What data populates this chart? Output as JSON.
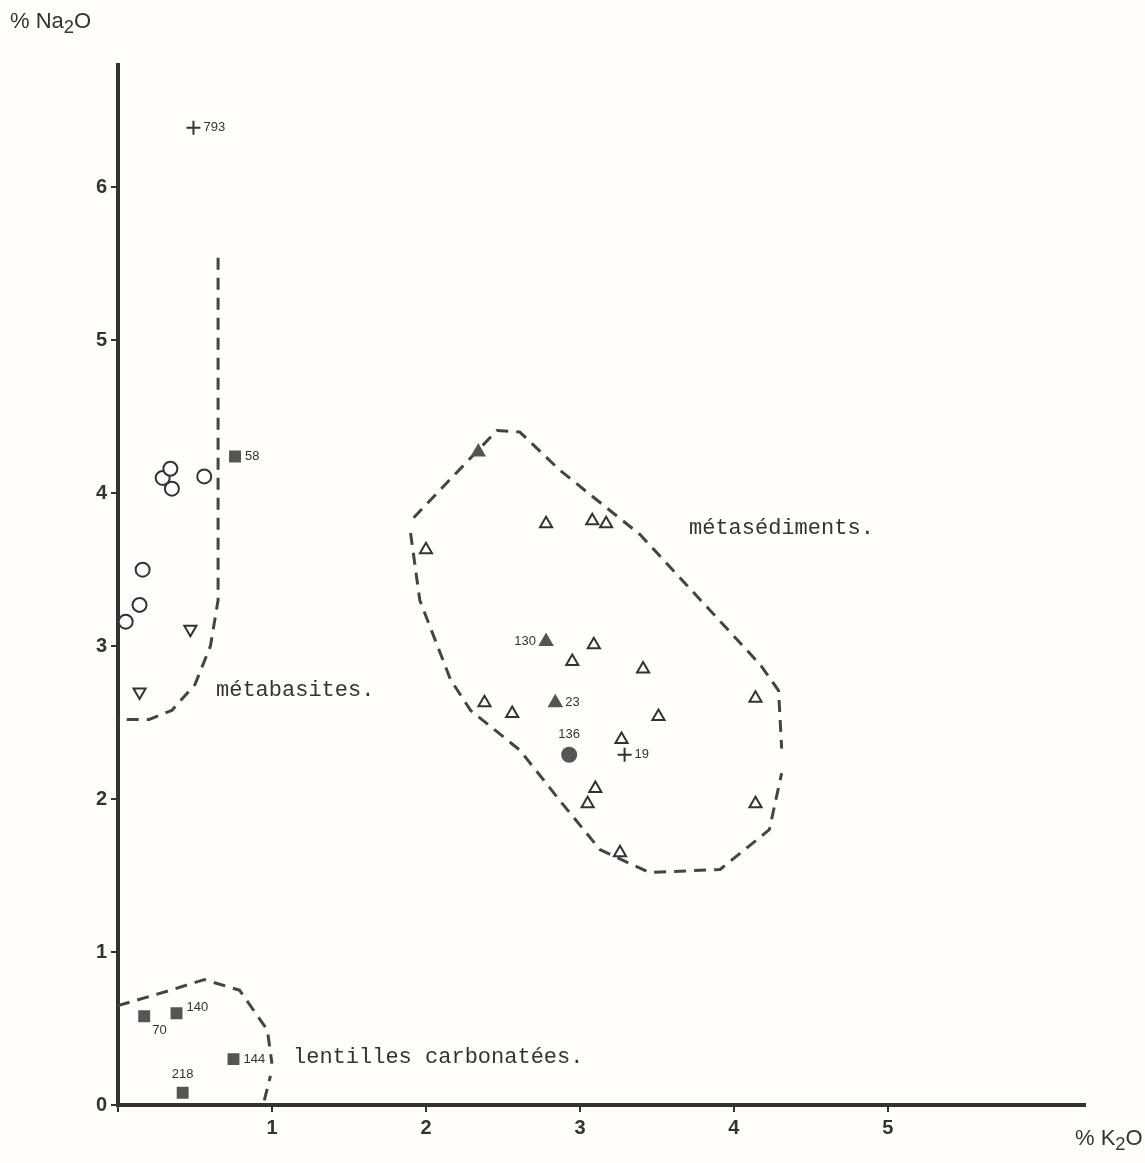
{
  "chart_data": {
    "type": "scatter",
    "xlabel": "% K$_{2}$O",
    "ylabel": "% Na$_{2}$O",
    "xlim": [
      0,
      6.28
    ],
    "ylim": [
      0,
      6.8
    ],
    "xticks": [
      {
        "value": 0,
        "label": null
      },
      1,
      2,
      3,
      4,
      5
    ],
    "yticks": [
      0,
      1,
      2,
      3,
      4,
      5,
      6
    ],
    "grid": false,
    "legend": false,
    "series": [
      {
        "type": "scatter",
        "marker": "circle-open",
        "color": "#333333",
        "x": [
          0.05,
          0.14,
          0.16,
          0.29,
          0.34,
          0.35,
          0.56
        ],
        "values": [
          3.16,
          3.27,
          3.5,
          4.1,
          4.16,
          4.03,
          4.11
        ]
      },
      {
        "type": "scatter",
        "marker": "triangle-down-open",
        "color": "#333333",
        "x": [
          0.14,
          0.47
        ],
        "values": [
          2.7,
          3.11
        ]
      },
      {
        "type": "scatter",
        "marker": "square",
        "color": "#555555",
        "x": [
          0.76,
          0.17,
          0.38,
          0.75,
          0.42
        ],
        "values": [
          4.24,
          0.58,
          0.6,
          0.3,
          0.08
        ]
      },
      {
        "type": "scatter",
        "marker": "cross",
        "color": "#333333",
        "x": [
          0.49,
          3.29
        ],
        "values": [
          6.39,
          2.29
        ]
      },
      {
        "type": "scatter",
        "marker": "circle",
        "color": "#555555",
        "x": [
          2.93
        ],
        "values": [
          2.29
        ]
      },
      {
        "type": "scatter",
        "marker": "triangle",
        "color": "#555555",
        "x": [
          2.34,
          2.78,
          2.84
        ],
        "values": [
          4.27,
          3.03,
          2.63
        ]
      },
      {
        "type": "scatter",
        "marker": "triangle-open",
        "color": "#333333",
        "x": [
          2.0,
          2.78,
          3.08,
          3.17,
          2.95,
          3.09,
          3.41,
          3.51,
          2.38,
          2.56,
          3.27,
          3.1,
          3.05,
          3.26,
          4.14,
          4.14
        ],
        "values": [
          3.63,
          3.8,
          3.82,
          3.8,
          2.9,
          3.01,
          2.85,
          2.54,
          2.63,
          2.56,
          2.39,
          2.07,
          1.97,
          1.65,
          2.66,
          1.97
        ]
      },
      {
        "type": "line",
        "marker": "none",
        "line_style": "dashed",
        "color": "#444444",
        "x": [
          0.65,
          0.65,
          0.6,
          0.5,
          0.35,
          0.2,
          0.0
        ],
        "values": [
          5.54,
          3.3,
          3.0,
          2.75,
          2.58,
          2.52,
          2.52
        ]
      },
      {
        "type": "line",
        "marker": "none",
        "line_style": "dashed",
        "color": "#444444",
        "x": [
          1.92,
          2.46,
          2.61,
          2.87,
          3.39,
          4.17,
          4.29,
          4.31
        ],
        "values": [
          3.84,
          4.41,
          4.4,
          4.15,
          3.73,
          2.88,
          2.71,
          2.33
        ]
      },
      {
        "type": "line",
        "marker": "none",
        "line_style": "dashed",
        "color": "#444444",
        "x": [
          1.9,
          1.96,
          2.16,
          2.29,
          2.61,
          2.87,
          3.13,
          3.45,
          3.91,
          4.23,
          4.31
        ],
        "values": [
          3.74,
          3.3,
          2.78,
          2.58,
          2.32,
          1.99,
          1.67,
          1.52,
          1.54,
          1.8,
          2.17
        ]
      },
      {
        "type": "line",
        "marker": "none",
        "line_style": "dashed",
        "color": "#444444",
        "x": [
          0.0,
          0.34,
          0.56,
          0.79,
          0.97,
          1.0
        ],
        "values": [
          0.65,
          0.75,
          0.82,
          0.75,
          0.49,
          0.27
        ]
      },
      {
        "type": "line",
        "marker": "none",
        "line_style": "dashed",
        "color": "#444444",
        "x": [
          0.95,
          0.99
        ],
        "values": [
          0.03,
          0.19
        ]
      }
    ],
    "annotations": [
      "métabasites.",
      "métasédiments.",
      "lentilles carbonatées.",
      {
        "text": "58",
        "x": 0.76,
        "y": 4.24
      },
      {
        "text": "70",
        "x": 0.17,
        "y": 0.58
      },
      {
        "text": "140",
        "x": 0.38,
        "y": 0.6
      },
      {
        "text": "144",
        "x": 0.75,
        "y": 0.3
      },
      {
        "text": "218",
        "x": 0.42,
        "y": 0.08
      },
      {
        "text": "793",
        "x": 0.49,
        "y": 6.39
      },
      {
        "text": "19",
        "x": 3.29,
        "y": 2.29
      },
      {
        "text": "136",
        "x": 2.93,
        "y": 2.29
      },
      {
        "text": "130",
        "x": 2.78,
        "y": 3.03
      },
      {
        "text": "23",
        "x": 2.84,
        "y": 2.63
      }
    ]
  }
}
